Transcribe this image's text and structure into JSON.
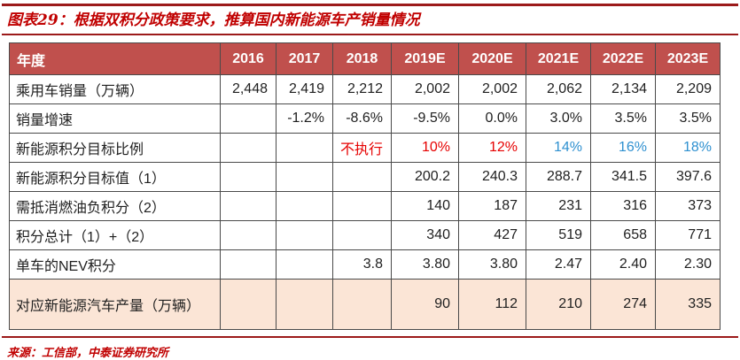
{
  "title": {
    "prefix": "图表29：",
    "text": "根据双积分政策要求，推算国内新能源车产销量情况"
  },
  "source": "来源：工信部，中泰证券研究所",
  "colors": {
    "accent": "#c00000",
    "rule": "#9c1a1a",
    "header-bg": "#c0504d",
    "header-text": "#ffffff",
    "cell-red": "#e60000",
    "cell-blue": "#2e90d0",
    "peach": "#fbe5d6"
  },
  "chart_data": {
    "type": "table",
    "columns": [
      "年度",
      "2016",
      "2017",
      "2018",
      "2019E",
      "2020E",
      "2021E",
      "2022E",
      "2023E"
    ],
    "rows": [
      {
        "label": "乘用车销量（万辆）",
        "values": [
          "2,448",
          "2,419",
          "2,212",
          "2,002",
          "2,002",
          "2,062",
          "2,134",
          "2,209"
        ]
      },
      {
        "label": "销量增速",
        "values": [
          "",
          "-1.2%",
          "-8.6%",
          "-9.5%",
          "0.0%",
          "3.0%",
          "3.5%",
          "3.5%"
        ]
      },
      {
        "label": "新能源积分目标比例",
        "values": [
          "",
          "",
          "不执行",
          "10%",
          "12%",
          "14%",
          "16%",
          "18%"
        ],
        "value_colors": [
          "",
          "",
          "red",
          "red",
          "red",
          "blue",
          "blue",
          "blue"
        ]
      },
      {
        "label": "新能源积分目标值（1）",
        "values": [
          "",
          "",
          "",
          "200.2",
          "240.3",
          "288.7",
          "341.5",
          "397.6"
        ]
      },
      {
        "label": "需抵消燃油负积分（2）",
        "values": [
          "",
          "",
          "",
          "140",
          "187",
          "231",
          "316",
          "373"
        ]
      },
      {
        "label": "积分总计（1）+（2）",
        "values": [
          "",
          "",
          "",
          "340",
          "427",
          "519",
          "658",
          "771"
        ]
      },
      {
        "label": "单车的NEV积分",
        "values": [
          "",
          "",
          "3.8",
          "3.80",
          "3.80",
          "2.47",
          "2.40",
          "2.30"
        ]
      },
      {
        "label": "对应新能源汽车产量（万辆）",
        "values": [
          "",
          "",
          "",
          "90",
          "112",
          "210",
          "274",
          "335"
        ],
        "row_bg": "peach",
        "tall": true
      }
    ]
  }
}
